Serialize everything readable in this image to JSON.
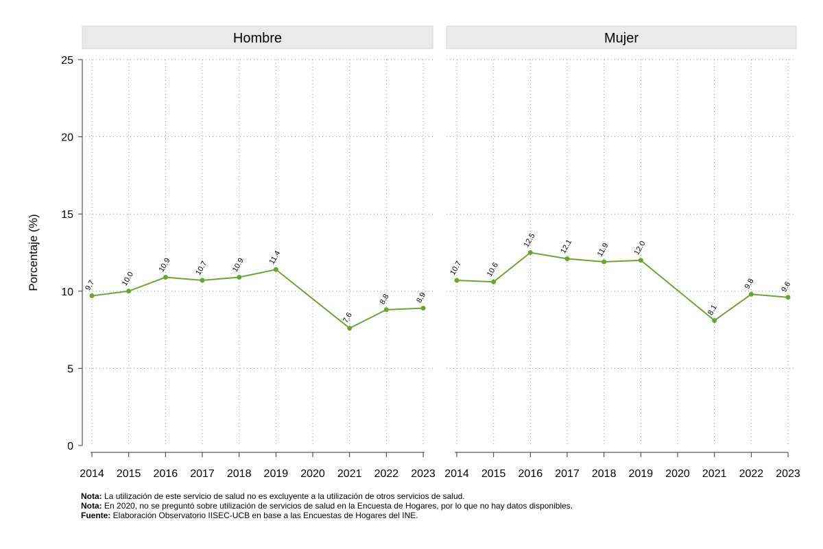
{
  "chart_data": {
    "type": "line",
    "ylabel": "Porcentaje (%)",
    "xlabel": "",
    "ylim": [
      0,
      25
    ],
    "yticks": [
      0,
      5,
      10,
      15,
      20,
      25
    ],
    "x": [
      "2014",
      "2015",
      "2016",
      "2017",
      "2018",
      "2019",
      "2020",
      "2021",
      "2022",
      "2023"
    ],
    "grid": true,
    "line_color": "#6aa532",
    "panels": [
      {
        "title": "Hombre",
        "values": [
          9.7,
          10.0,
          10.9,
          10.7,
          10.9,
          11.4,
          null,
          7.6,
          8.8,
          8.9
        ],
        "labels": [
          "9.7",
          "10.0",
          "10.9",
          "10.7",
          "10.9",
          "11.4",
          "",
          "7.6",
          "8.8",
          "8.9"
        ]
      },
      {
        "title": "Mujer",
        "values": [
          10.7,
          10.6,
          12.5,
          12.1,
          11.9,
          12.0,
          null,
          8.1,
          9.8,
          9.6
        ],
        "labels": [
          "10.7",
          "10.6",
          "12.5",
          "12.1",
          "11.9",
          "12.0",
          "",
          "8.1",
          "9.8",
          "9.6"
        ]
      }
    ]
  },
  "notes": [
    {
      "label": "Nota:",
      "text": " La utilización de este servicio de salud no es excluyente a la utilización de otros servicios de salud."
    },
    {
      "label": "Nota:",
      "text": " En 2020, no se preguntó sobre utilización de servicios de salud en la Encuesta de Hogares, por lo que no hay datos disponibles."
    },
    {
      "label": "Fuente:",
      "text": " Elaboración Observatorio IISEC-UCB en base a las Encuestas de Hogares del INE."
    }
  ]
}
